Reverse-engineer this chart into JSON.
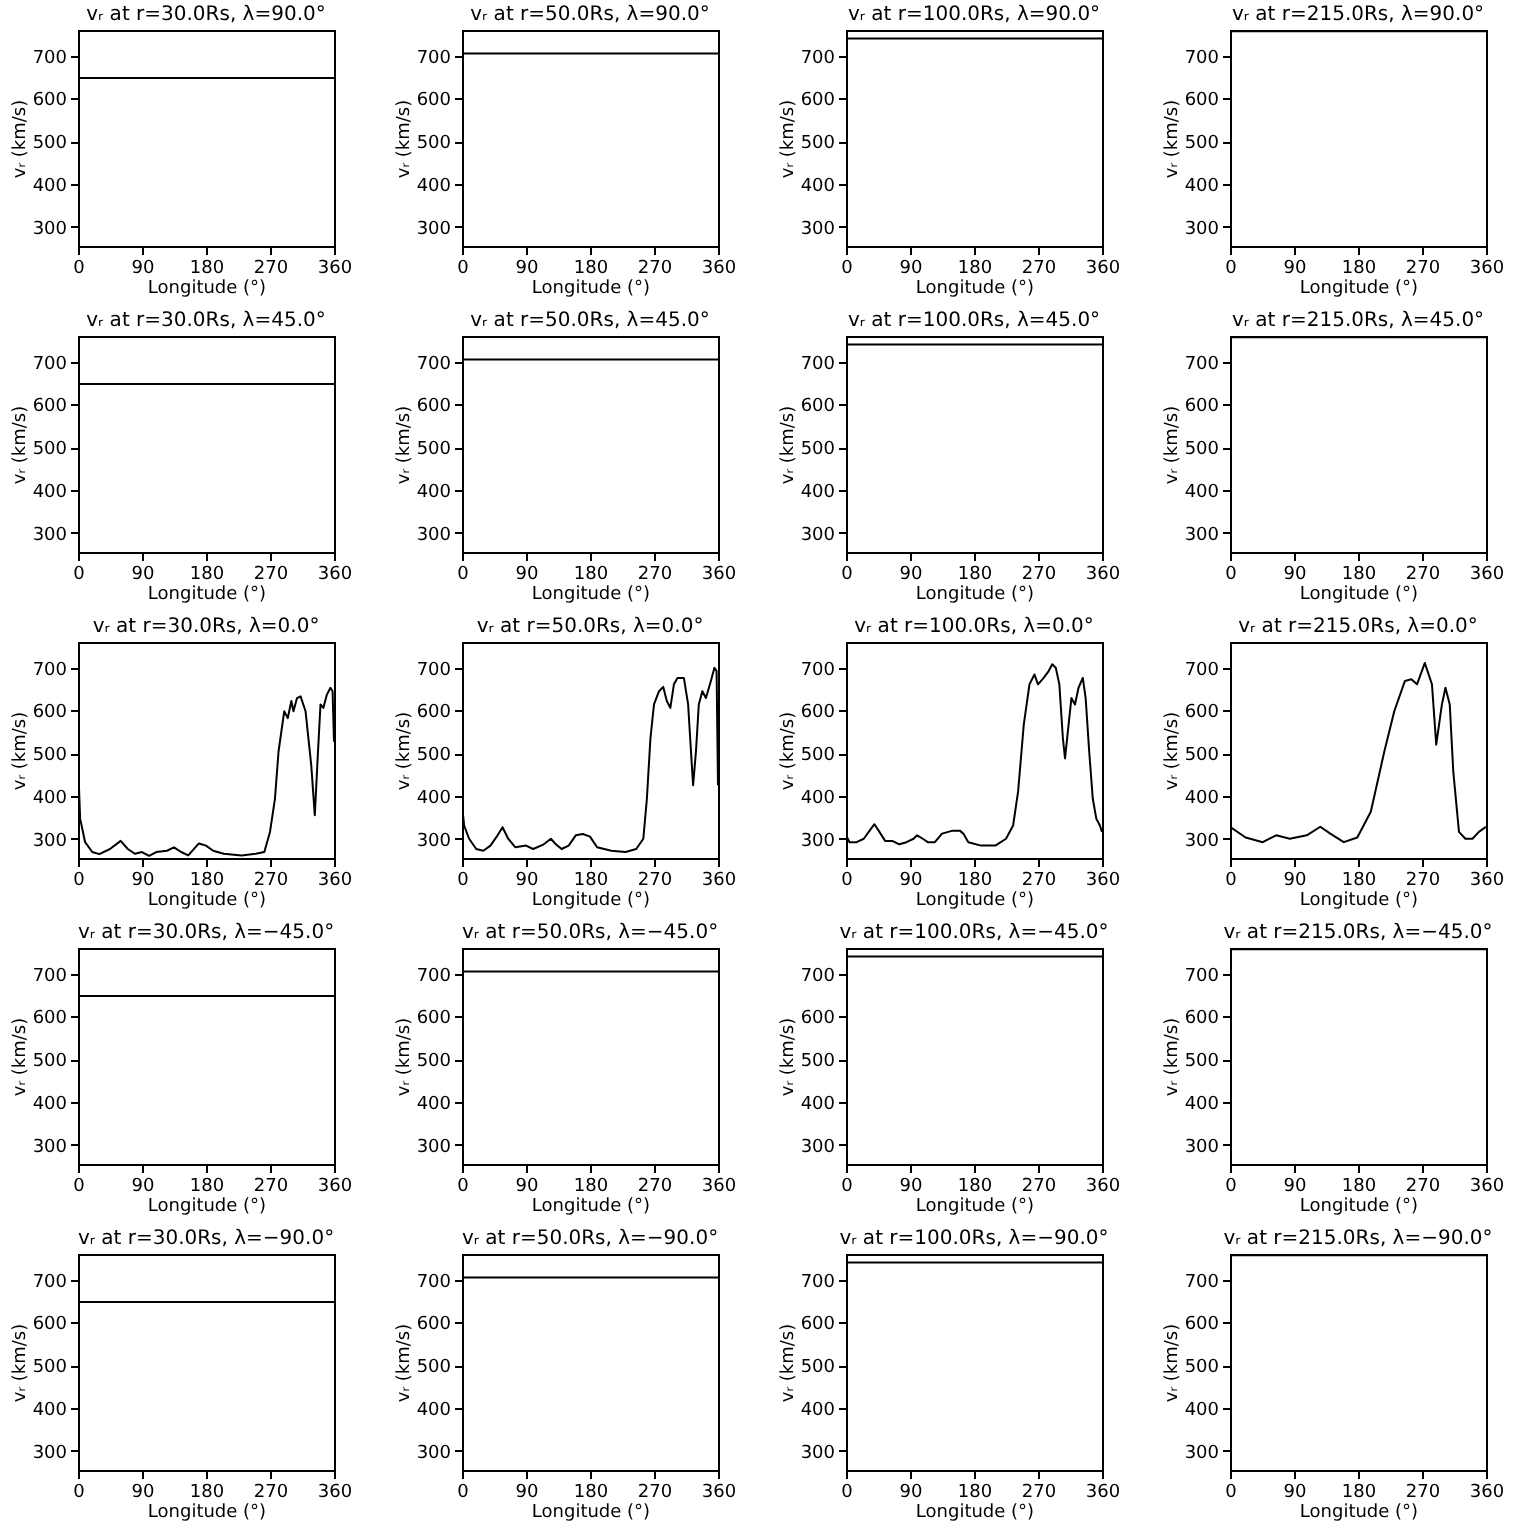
{
  "chart_data": [
    {
      "type": "line",
      "title": "vᵣ at r=30.0Rs, λ=90.0°",
      "xlabel": "Longitude (°)",
      "ylabel": "vᵣ (km/s)",
      "color": "#000000",
      "x": [
        0,
        360
      ],
      "values": [
        648,
        648
      ],
      "xlim": [
        0,
        360
      ],
      "xticks": [
        0,
        90,
        180,
        270,
        360
      ],
      "ylim": [
        255,
        760
      ],
      "yticks": [
        300,
        400,
        500,
        600,
        700
      ]
    },
    {
      "type": "line",
      "title": "vᵣ at r=50.0Rs, λ=90.0°",
      "xlabel": "Longitude (°)",
      "ylabel": "vᵣ (km/s)",
      "color": "#000000",
      "x": [
        0,
        360
      ],
      "values": [
        705,
        705
      ],
      "xlim": [
        0,
        360
      ],
      "xticks": [
        0,
        90,
        180,
        270,
        360
      ],
      "ylim": [
        255,
        760
      ],
      "yticks": [
        300,
        400,
        500,
        600,
        700
      ]
    },
    {
      "type": "line",
      "title": "vᵣ at r=100.0Rs, λ=90.0°",
      "xlabel": "Longitude (°)",
      "ylabel": "vᵣ (km/s)",
      "color": "#000000",
      "x": [
        0,
        360
      ],
      "values": [
        740,
        740
      ],
      "xlim": [
        0,
        360
      ],
      "xticks": [
        0,
        90,
        180,
        270,
        360
      ],
      "ylim": [
        255,
        760
      ],
      "yticks": [
        300,
        400,
        500,
        600,
        700
      ]
    },
    {
      "type": "line",
      "title": "vᵣ at r=215.0Rs, λ=90.0°",
      "xlabel": "Longitude (°)",
      "ylabel": "vᵣ (km/s)",
      "color": "#000000",
      "x": [
        0,
        360
      ],
      "values": [
        757,
        757
      ],
      "xlim": [
        0,
        360
      ],
      "xticks": [
        0,
        90,
        180,
        270,
        360
      ],
      "ylim": [
        255,
        760
      ],
      "yticks": [
        300,
        400,
        500,
        600,
        700
      ]
    },
    {
      "type": "line",
      "title": "vᵣ at r=30.0Rs, λ=45.0°",
      "xlabel": "Longitude (°)",
      "ylabel": "vᵣ (km/s)",
      "color": "#000000",
      "x": [
        0,
        360
      ],
      "values": [
        648,
        648
      ],
      "xlim": [
        0,
        360
      ],
      "xticks": [
        0,
        90,
        180,
        270,
        360
      ],
      "ylim": [
        255,
        760
      ],
      "yticks": [
        300,
        400,
        500,
        600,
        700
      ]
    },
    {
      "type": "line",
      "title": "vᵣ at r=50.0Rs, λ=45.0°",
      "xlabel": "Longitude (°)",
      "ylabel": "vᵣ (km/s)",
      "color": "#000000",
      "x": [
        0,
        360
      ],
      "values": [
        705,
        705
      ],
      "xlim": [
        0,
        360
      ],
      "xticks": [
        0,
        90,
        180,
        270,
        360
      ],
      "ylim": [
        255,
        760
      ],
      "yticks": [
        300,
        400,
        500,
        600,
        700
      ]
    },
    {
      "type": "line",
      "title": "vᵣ at r=100.0Rs, λ=45.0°",
      "xlabel": "Longitude (°)",
      "ylabel": "vᵣ (km/s)",
      "color": "#000000",
      "x": [
        0,
        360
      ],
      "values": [
        740,
        740
      ],
      "xlim": [
        0,
        360
      ],
      "xticks": [
        0,
        90,
        180,
        270,
        360
      ],
      "ylim": [
        255,
        760
      ],
      "yticks": [
        300,
        400,
        500,
        600,
        700
      ]
    },
    {
      "type": "line",
      "title": "vᵣ at r=215.0Rs, λ=45.0°",
      "xlabel": "Longitude (°)",
      "ylabel": "vᵣ (km/s)",
      "color": "#000000",
      "x": [
        0,
        360
      ],
      "values": [
        757,
        757
      ],
      "xlim": [
        0,
        360
      ],
      "xticks": [
        0,
        90,
        180,
        270,
        360
      ],
      "ylim": [
        255,
        760
      ],
      "yticks": [
        300,
        400,
        500,
        600,
        700
      ]
    },
    {
      "type": "line",
      "title": "vᵣ at r=30.0Rs, λ=0.0°",
      "xlabel": "Longitude (°)",
      "ylabel": "vᵣ (km/s)",
      "color": "#000000",
      "x": [
        0,
        3,
        10,
        20,
        30,
        45,
        60,
        70,
        80,
        90,
        100,
        110,
        125,
        135,
        145,
        155,
        170,
        180,
        190,
        205,
        230,
        250,
        262,
        270,
        277,
        282,
        290,
        295,
        300,
        303,
        308,
        313,
        320,
        328,
        333,
        337,
        341,
        345,
        350,
        355,
        358,
        360
      ],
      "values": [
        480,
        347,
        292,
        269,
        264,
        276,
        295,
        276,
        265,
        269,
        260,
        269,
        272,
        280,
        269,
        261,
        289,
        284,
        272,
        265,
        261,
        265,
        269,
        316,
        394,
        504,
        598,
        582,
        622,
        598,
        629,
        633,
        598,
        472,
        355,
        488,
        614,
        606,
        637,
        653,
        645,
        527
      ],
      "xlim": [
        0,
        360
      ],
      "xticks": [
        0,
        90,
        180,
        270,
        360
      ],
      "ylim": [
        255,
        760
      ],
      "yticks": [
        300,
        400,
        500,
        600,
        700
      ]
    },
    {
      "type": "line",
      "title": "vᵣ at r=50.0Rs, λ=0.0°",
      "xlabel": "Longitude (°)",
      "ylabel": "vᵣ (km/s)",
      "color": "#000000",
      "x": [
        0,
        3,
        10,
        20,
        30,
        40,
        50,
        57,
        65,
        75,
        90,
        100,
        115,
        125,
        132,
        140,
        150,
        160,
        170,
        180,
        190,
        210,
        230,
        245,
        255,
        260,
        265,
        270,
        277,
        283,
        288,
        293,
        298,
        303,
        312,
        318,
        322,
        325,
        329,
        333,
        338,
        343,
        350,
        355,
        358,
        360
      ],
      "values": [
        380,
        331,
        300,
        276,
        272,
        284,
        308,
        327,
        300,
        280,
        284,
        276,
        287,
        300,
        287,
        276,
        284,
        308,
        311,
        305,
        280,
        272,
        269,
        276,
        300,
        394,
        535,
        614,
        645,
        655,
        622,
        606,
        661,
        676,
        676,
        614,
        504,
        425,
        504,
        614,
        645,
        629,
        669,
        700,
        692,
        425
      ],
      "xlim": [
        0,
        360
      ],
      "xticks": [
        0,
        90,
        180,
        270,
        360
      ],
      "ylim": [
        255,
        760
      ],
      "yticks": [
        300,
        400,
        500,
        600,
        700
      ]
    },
    {
      "type": "line",
      "title": "vᵣ at r=100.0Rs, λ=0.0°",
      "xlabel": "Longitude (°)",
      "ylabel": "vᵣ (km/s)",
      "color": "#000000",
      "x": [
        0,
        5,
        15,
        25,
        35,
        40,
        47,
        55,
        65,
        75,
        85,
        95,
        100,
        108,
        115,
        125,
        135,
        150,
        160,
        165,
        172,
        190,
        210,
        225,
        235,
        242,
        250,
        258,
        265,
        270,
        278,
        285,
        290,
        295,
        300,
        305,
        308,
        312,
        317,
        322,
        327,
        333,
        337,
        342,
        347,
        352,
        357,
        360
      ],
      "values": [
        308,
        292,
        292,
        300,
        323,
        334,
        316,
        295,
        295,
        287,
        292,
        300,
        308,
        300,
        292,
        292,
        312,
        319,
        319,
        312,
        292,
        284,
        284,
        300,
        331,
        410,
        567,
        661,
        684,
        661,
        676,
        692,
        708,
        700,
        661,
        535,
        488,
        551,
        629,
        614,
        653,
        676,
        629,
        504,
        394,
        347,
        331,
        316
      ],
      "xlim": [
        0,
        360
      ],
      "xticks": [
        0,
        90,
        180,
        270,
        360
      ],
      "ylim": [
        255,
        760
      ],
      "yticks": [
        300,
        400,
        500,
        600,
        700
      ]
    },
    {
      "type": "line",
      "title": "vᵣ at r=215.0Rs, λ=0.0°",
      "xlabel": "Longitude (°)",
      "ylabel": "vᵣ (km/s)",
      "color": "#000000",
      "x": [
        0,
        22,
        46,
        65,
        84,
        108,
        127,
        141,
        160,
        179,
        198,
        217,
        231,
        246,
        255,
        263,
        274,
        284,
        290,
        298,
        303,
        309,
        314,
        322,
        331,
        341,
        350,
        360
      ],
      "values": [
        328,
        303,
        292,
        308,
        300,
        308,
        328,
        312,
        292,
        303,
        363,
        504,
        598,
        669,
        673,
        661,
        711,
        661,
        520,
        614,
        653,
        614,
        457,
        316,
        300,
        300,
        316,
        328
      ],
      "xlim": [
        0,
        360
      ],
      "xticks": [
        0,
        90,
        180,
        270,
        360
      ],
      "ylim": [
        255,
        760
      ],
      "yticks": [
        300,
        400,
        500,
        600,
        700
      ]
    },
    {
      "type": "line",
      "title": "vᵣ at r=30.0Rs, λ=−45.0°",
      "xlabel": "Longitude (°)",
      "ylabel": "vᵣ (km/s)",
      "color": "#000000",
      "x": [
        0,
        360
      ],
      "values": [
        648,
        648
      ],
      "xlim": [
        0,
        360
      ],
      "xticks": [
        0,
        90,
        180,
        270,
        360
      ],
      "ylim": [
        255,
        760
      ],
      "yticks": [
        300,
        400,
        500,
        600,
        700
      ]
    },
    {
      "type": "line",
      "title": "vᵣ at r=50.0Rs, λ=−45.0°",
      "xlabel": "Longitude (°)",
      "ylabel": "vᵣ (km/s)",
      "color": "#000000",
      "x": [
        0,
        360
      ],
      "values": [
        705,
        705
      ],
      "xlim": [
        0,
        360
      ],
      "xticks": [
        0,
        90,
        180,
        270,
        360
      ],
      "ylim": [
        255,
        760
      ],
      "yticks": [
        300,
        400,
        500,
        600,
        700
      ]
    },
    {
      "type": "line",
      "title": "vᵣ at r=100.0Rs, λ=−45.0°",
      "xlabel": "Longitude (°)",
      "ylabel": "vᵣ (km/s)",
      "color": "#000000",
      "x": [
        0,
        360
      ],
      "values": [
        740,
        740
      ],
      "xlim": [
        0,
        360
      ],
      "xticks": [
        0,
        90,
        180,
        270,
        360
      ],
      "ylim": [
        255,
        760
      ],
      "yticks": [
        300,
        400,
        500,
        600,
        700
      ]
    },
    {
      "type": "line",
      "title": "vᵣ at r=215.0Rs, λ=−45.0°",
      "xlabel": "Longitude (°)",
      "ylabel": "vᵣ (km/s)",
      "color": "#000000",
      "x": [
        0,
        360
      ],
      "values": [
        757,
        757
      ],
      "xlim": [
        0,
        360
      ],
      "xticks": [
        0,
        90,
        180,
        270,
        360
      ],
      "ylim": [
        255,
        760
      ],
      "yticks": [
        300,
        400,
        500,
        600,
        700
      ]
    },
    {
      "type": "line",
      "title": "vᵣ at r=30.0Rs, λ=−90.0°",
      "xlabel": "Longitude (°)",
      "ylabel": "vᵣ (km/s)",
      "color": "#000000",
      "x": [
        0,
        360
      ],
      "values": [
        648,
        648
      ],
      "xlim": [
        0,
        360
      ],
      "xticks": [
        0,
        90,
        180,
        270,
        360
      ],
      "ylim": [
        255,
        760
      ],
      "yticks": [
        300,
        400,
        500,
        600,
        700
      ]
    },
    {
      "type": "line",
      "title": "vᵣ at r=50.0Rs, λ=−90.0°",
      "xlabel": "Longitude (°)",
      "ylabel": "vᵣ (km/s)",
      "color": "#000000",
      "x": [
        0,
        360
      ],
      "values": [
        705,
        705
      ],
      "xlim": [
        0,
        360
      ],
      "xticks": [
        0,
        90,
        180,
        270,
        360
      ],
      "ylim": [
        255,
        760
      ],
      "yticks": [
        300,
        400,
        500,
        600,
        700
      ]
    },
    {
      "type": "line",
      "title": "vᵣ at r=100.0Rs, λ=−90.0°",
      "xlabel": "Longitude (°)",
      "ylabel": "vᵣ (km/s)",
      "color": "#000000",
      "x": [
        0,
        360
      ],
      "values": [
        740,
        740
      ],
      "xlim": [
        0,
        360
      ],
      "xticks": [
        0,
        90,
        180,
        270,
        360
      ],
      "ylim": [
        255,
        760
      ],
      "yticks": [
        300,
        400,
        500,
        600,
        700
      ]
    },
    {
      "type": "line",
      "title": "vᵣ at r=215.0Rs, λ=−90.0°",
      "xlabel": "Longitude (°)",
      "ylabel": "vᵣ (km/s)",
      "color": "#000000",
      "x": [
        0,
        360
      ],
      "values": [
        757,
        757
      ],
      "xlim": [
        0,
        360
      ],
      "xticks": [
        0,
        90,
        180,
        270,
        360
      ],
      "ylim": [
        255,
        760
      ],
      "yticks": [
        300,
        400,
        500,
        600,
        700
      ]
    }
  ]
}
